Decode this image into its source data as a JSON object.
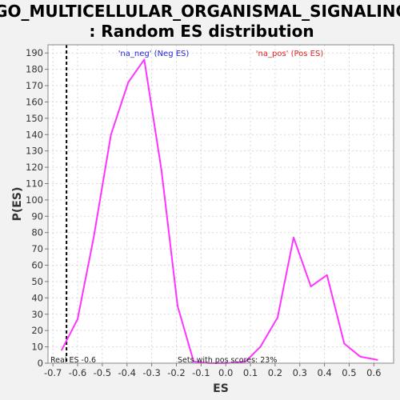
{
  "chart_data": {
    "type": "line",
    "title": "GO_MULTICELLULAR_ORGANISMAL_SIGNALING",
    "subtitle": ": Random ES distribution",
    "xlabel": "ES",
    "ylabel": "P(ES)",
    "xlim": [
      -0.72,
      0.68
    ],
    "ylim": [
      0,
      195
    ],
    "x_ticks": [
      -0.7,
      -0.6,
      -0.5,
      -0.4,
      -0.3,
      -0.2,
      -0.1,
      0.0,
      0.1,
      0.2,
      0.3,
      0.4,
      0.5,
      0.6
    ],
    "x_tick_labels": [
      "-0.7",
      "-0.6",
      "-0.5",
      "-0.4",
      "-0.3",
      "-0.2",
      "-0.1",
      "0.0",
      "0.1",
      "0.2",
      "0.3",
      "0.4",
      "0.5",
      "0.6"
    ],
    "y_ticks": [
      0,
      10,
      20,
      30,
      40,
      50,
      60,
      70,
      80,
      90,
      100,
      110,
      120,
      130,
      140,
      150,
      160,
      170,
      180,
      190
    ],
    "grid": true,
    "series": [
      {
        "color": "#ff33ff",
        "x": [
          -0.665,
          -0.6,
          -0.535,
          -0.465,
          -0.395,
          -0.33,
          -0.26,
          -0.195,
          -0.13,
          -0.065,
          0.0,
          0.08,
          0.14,
          0.21,
          0.275,
          0.345,
          0.41,
          0.48,
          0.545,
          0.615
        ],
        "y": [
          8,
          27,
          77,
          140,
          172,
          186,
          118,
          35,
          1,
          0,
          0,
          1,
          10,
          28,
          77,
          47,
          54,
          12,
          4,
          2
        ]
      }
    ],
    "real_es_marker": {
      "x": -0.645,
      "style": "dashed",
      "color": "#000000"
    },
    "annotations": {
      "legend_neg": "'na_neg' (Neg ES)",
      "legend_pos": "'na_pos' (Pos ES)",
      "real_es": "Real ES -0.6",
      "pos_scores": "Sets with pos scores: 23%"
    }
  }
}
